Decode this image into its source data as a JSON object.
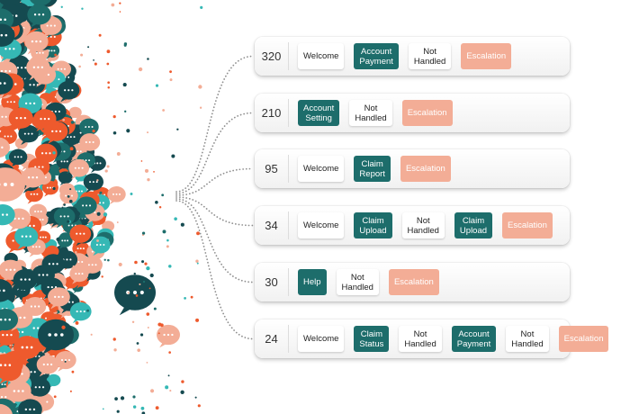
{
  "colors": {
    "teal": "#1d6d6b",
    "dark_teal": "#154a50",
    "bright_teal": "#35b8b5",
    "orange": "#ee5a2d",
    "salmon": "#f3ad96",
    "neutral": "#ffffff"
  },
  "paths": [
    {
      "count": "320",
      "steps": [
        {
          "label": "Welcome",
          "kind": "neutral"
        },
        {
          "label": "Account\nPayment",
          "kind": "teal"
        },
        {
          "label": "Not\nHandled",
          "kind": "neutral"
        },
        {
          "label": "Escalation",
          "kind": "salmon"
        }
      ]
    },
    {
      "count": "210",
      "steps": [
        {
          "label": "Account\nSetting",
          "kind": "teal"
        },
        {
          "label": "Not\nHandled",
          "kind": "neutral"
        },
        {
          "label": "Escalation",
          "kind": "salmon"
        }
      ]
    },
    {
      "count": "95",
      "steps": [
        {
          "label": "Welcome",
          "kind": "neutral"
        },
        {
          "label": "Claim\nReport",
          "kind": "teal"
        },
        {
          "label": "Escalation",
          "kind": "salmon"
        }
      ]
    },
    {
      "count": "34",
      "steps": [
        {
          "label": "Welcome",
          "kind": "neutral"
        },
        {
          "label": "Claim\nUpload",
          "kind": "teal"
        },
        {
          "label": "Not\nHandled",
          "kind": "neutral"
        },
        {
          "label": "Claim\nUpload",
          "kind": "teal"
        },
        {
          "label": "Escalation",
          "kind": "salmon"
        }
      ]
    },
    {
      "count": "30",
      "steps": [
        {
          "label": "Help",
          "kind": "teal"
        },
        {
          "label": "Not\nHandled",
          "kind": "neutral"
        },
        {
          "label": "Escalation",
          "kind": "salmon"
        }
      ]
    },
    {
      "count": "24",
      "steps": [
        {
          "label": "Welcome",
          "kind": "neutral"
        },
        {
          "label": "Claim\nStatus",
          "kind": "teal"
        },
        {
          "label": "Not\nHandled",
          "kind": "neutral"
        },
        {
          "label": "Account\nPayment",
          "kind": "teal"
        },
        {
          "label": "Not\nHandled",
          "kind": "neutral"
        },
        {
          "label": "Escalation",
          "kind": "salmon"
        }
      ]
    }
  ]
}
